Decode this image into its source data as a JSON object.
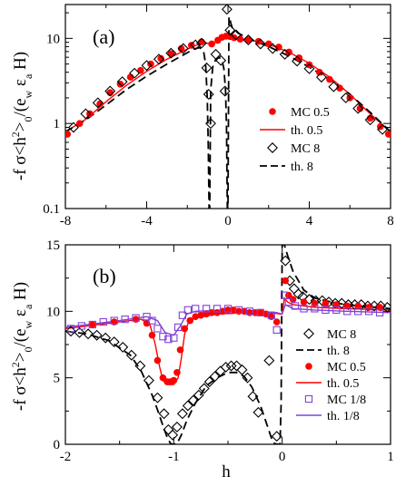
{
  "figure": {
    "xlabel": "h",
    "ylabel_a": "-f σ<h²>₀/(e_w ε_a H)",
    "ylabel_b": "-f σ<h²>₀/(e_w ε_a H)"
  },
  "chart_data": [
    {
      "type": "scatter",
      "panel_label": "(a)",
      "xlim": [
        -8,
        8
      ],
      "ylim": [
        0.1,
        25
      ],
      "yscale": "log",
      "xticks": [
        -8,
        -4,
        0,
        4,
        8
      ],
      "yticks": [
        0.1,
        1,
        10
      ],
      "xtick_labels": [
        "-8",
        "-4",
        "0",
        "4",
        "8"
      ],
      "ytick_labels": [
        "0.1",
        "1",
        "10"
      ],
      "legend_position": "right",
      "series": [
        {
          "name": "MC 0.5",
          "kind": "dots",
          "color": "#ff0000",
          "x": [
            -7.9,
            -7.3,
            -6.8,
            -6.3,
            -5.8,
            -5.3,
            -4.8,
            -4.3,
            -3.8,
            -3.3,
            -2.8,
            -2.3,
            -1.8,
            -1.3,
            -0.8,
            -0.5,
            -0.3,
            -0.1,
            0.1,
            0.3,
            0.6,
            1.0,
            1.5,
            2.0,
            2.5,
            3.0,
            3.5,
            4.0,
            4.5,
            5.0,
            5.5,
            6.0,
            6.5,
            7.0,
            7.5,
            7.9
          ],
          "y": [
            0.75,
            1.0,
            1.3,
            1.7,
            2.3,
            2.9,
            3.5,
            4.2,
            5.0,
            5.8,
            6.6,
            7.6,
            8.3,
            9.1,
            8.6,
            9.5,
            10.3,
            10.6,
            10.5,
            10.2,
            9.8,
            9.6,
            9.2,
            8.6,
            7.9,
            6.9,
            5.9,
            4.9,
            4.0,
            3.3,
            2.6,
            2.0,
            1.5,
            1.15,
            0.92,
            0.75
          ]
        },
        {
          "name": "th. 0.5",
          "kind": "line",
          "color": "#ff0000",
          "x": [
            -8,
            -7,
            -6,
            -5,
            -4,
            -3,
            -2,
            -1.5,
            -1.1,
            -0.8,
            -0.5,
            -0.2,
            0,
            0.3,
            0.6,
            1,
            1.5,
            2,
            3,
            4,
            5,
            6,
            7,
            8
          ],
          "y": [
            0.8,
            1.12,
            1.8,
            2.8,
            4.1,
            5.7,
            7.5,
            8.4,
            8.8,
            8.6,
            9.2,
            10.0,
            10.3,
            10.2,
            9.9,
            9.6,
            9.1,
            8.5,
            6.9,
            5.1,
            3.5,
            2.2,
            1.3,
            0.8
          ]
        },
        {
          "name": "MC 8",
          "kind": "diamonds",
          "color": "#000000",
          "x": [
            -7.6,
            -7.0,
            -6.4,
            -5.8,
            -5.2,
            -4.6,
            -4.0,
            -3.4,
            -2.8,
            -2.2,
            -1.6,
            -1.3,
            -1.05,
            -0.95,
            -0.85,
            -0.6,
            -0.35,
            -0.15,
            -0.05,
            0.1,
            0.4,
            1.0,
            1.6,
            2.2,
            2.8,
            3.4,
            4.0,
            4.6,
            5.2,
            5.8,
            6.4,
            7.0,
            7.6
          ],
          "y": [
            0.9,
            1.3,
            1.75,
            2.4,
            3.1,
            3.9,
            4.8,
            5.7,
            6.7,
            7.6,
            8.4,
            8.8,
            4.5,
            2.2,
            1.0,
            6.5,
            5.5,
            2.4,
            22,
            12.5,
            11,
            9.6,
            8.6,
            7.6,
            6.5,
            5.4,
            4.4,
            3.5,
            2.7,
            2.0,
            1.5,
            1.1,
            0.85
          ]
        },
        {
          "name": "th. 8",
          "kind": "dashed",
          "color": "#000000",
          "x": [
            -8,
            -7,
            -6,
            -5,
            -4,
            -3,
            -2,
            -1.7,
            -1.4,
            -1.2,
            -1.1,
            -1.02,
            -0.97,
            -0.93,
            -0.9,
            -0.85,
            -0.75,
            -0.6,
            -0.45,
            -0.3,
            -0.2,
            -0.12,
            -0.07,
            -0.03,
            0,
            0.05,
            0.2,
            0.5,
            1,
            2,
            3,
            4,
            5,
            6,
            7,
            8
          ],
          "y": [
            0.8,
            1.1,
            1.65,
            2.5,
            3.6,
            5.0,
            6.8,
            7.5,
            7.8,
            7.0,
            5.0,
            2.0,
            0.55,
            0.1,
            0.1,
            2.5,
            4.6,
            5.7,
            6.0,
            5.6,
            4.4,
            2.5,
            0.9,
            0.1,
            0.1,
            18,
            13.5,
            11.5,
            10.0,
            8.0,
            6.2,
            4.6,
            3.3,
            2.2,
            1.35,
            0.8
          ]
        }
      ]
    },
    {
      "type": "scatter",
      "panel_label": "(b)",
      "xlim": [
        -2,
        1
      ],
      "ylim": [
        0,
        15
      ],
      "yscale": "linear",
      "xticks": [
        -2,
        -1,
        0,
        1
      ],
      "yticks": [
        0,
        5,
        10,
        15
      ],
      "xtick_labels": [
        "-2",
        "-1",
        "0",
        "1"
      ],
      "ytick_labels": [
        "0",
        "5",
        "10",
        "15"
      ],
      "legend_position": "right",
      "series": [
        {
          "name": "MC 8",
          "kind": "diamonds",
          "color": "#000000",
          "x": [
            -1.95,
            -1.87,
            -1.79,
            -1.71,
            -1.63,
            -1.55,
            -1.47,
            -1.39,
            -1.31,
            -1.23,
            -1.15,
            -1.09,
            -1.05,
            -1.01,
            -0.97,
            -0.92,
            -0.87,
            -0.82,
            -0.77,
            -0.72,
            -0.67,
            -0.62,
            -0.57,
            -0.52,
            -0.47,
            -0.42,
            -0.37,
            -0.32,
            -0.27,
            -0.22,
            -0.12,
            -0.05,
            0.03,
            0.07,
            0.11,
            0.15,
            0.19,
            0.25,
            0.31,
            0.37,
            0.43,
            0.49,
            0.55,
            0.61,
            0.67,
            0.73,
            0.79,
            0.85,
            0.91,
            0.97
          ],
          "y": [
            8.5,
            8.4,
            8.3,
            8.2,
            8.0,
            7.7,
            7.3,
            6.7,
            5.9,
            4.8,
            3.5,
            2.3,
            1.1,
            0.7,
            1.3,
            2.3,
            2.9,
            3.3,
            3.7,
            4.2,
            4.7,
            5.1,
            5.5,
            5.8,
            5.9,
            5.9,
            5.6,
            5.0,
            3.6,
            2.4,
            6.3,
            0.6,
            13.8,
            12.3,
            11.7,
            11.3,
            11.1,
            10.9,
            10.8,
            10.8,
            10.7,
            10.6,
            10.6,
            10.5,
            10.5,
            10.5,
            10.4,
            10.4,
            10.4,
            10.3
          ]
        },
        {
          "name": "th. 8",
          "kind": "dashed",
          "color": "#000000",
          "x": [
            -2,
            -1.8,
            -1.6,
            -1.4,
            -1.3,
            -1.2,
            -1.15,
            -1.1,
            -1.06,
            -1.03,
            -1.0,
            -0.97,
            -0.93,
            -0.88,
            -0.8,
            -0.7,
            -0.6,
            -0.5,
            -0.42,
            -0.35,
            -0.28,
            -0.2,
            -0.15,
            -0.1,
            -0.07,
            -0.04,
            -0.02,
            -0.01,
            0,
            0.01,
            0.02,
            0.05,
            0.1,
            0.2,
            0.3,
            0.5,
            0.7,
            1.0
          ],
          "y": [
            8.5,
            8.3,
            7.8,
            6.7,
            5.5,
            3.7,
            2.6,
            1.4,
            0.5,
            0.05,
            0.0,
            0.05,
            0.7,
            1.8,
            3.1,
            4.4,
            5.0,
            5.4,
            5.4,
            5.1,
            4.3,
            2.9,
            1.7,
            0.5,
            0.05,
            0.0,
            0.0,
            3.0,
            15,
            15,
            15,
            14.2,
            13.0,
            11.6,
            11.0,
            10.6,
            10.4,
            10.2
          ]
        },
        {
          "name": "MC 0.5",
          "kind": "dots",
          "color": "#ff0000",
          "x": [
            -1.75,
            -1.55,
            -1.35,
            -1.25,
            -1.2,
            -1.15,
            -1.1,
            -1.06,
            -1.03,
            -1.0,
            -0.97,
            -0.94,
            -0.9,
            -0.85,
            -0.8,
            -0.75,
            -0.7,
            -0.65,
            -0.6,
            -0.55,
            -0.5,
            -0.45,
            -0.4,
            -0.35,
            -0.3,
            -0.25,
            -0.2,
            -0.15,
            -0.1,
            -0.05,
            0.03,
            0.06,
            0.1,
            0.2,
            0.3,
            0.4,
            0.5,
            0.6,
            0.7,
            0.8,
            0.9
          ],
          "y": [
            9.0,
            9.2,
            9.4,
            9.1,
            8.2,
            6.3,
            5.0,
            4.7,
            4.7,
            4.8,
            5.4,
            7.1,
            8.7,
            9.3,
            9.6,
            9.7,
            9.8,
            9.9,
            9.9,
            10.0,
            10.1,
            10.1,
            10.0,
            10.0,
            9.9,
            9.9,
            9.9,
            9.8,
            9.6,
            9.2,
            12.3,
            11.2,
            10.9,
            10.7,
            10.6,
            10.6,
            10.5,
            10.4,
            10.4,
            10.3,
            10.3
          ]
        },
        {
          "name": "th. 0.5",
          "kind": "line",
          "color": "#ff0000",
          "x": [
            -2,
            -1.6,
            -1.3,
            -1.22,
            -1.17,
            -1.13,
            -1.1,
            -1.06,
            -1.0,
            -0.96,
            -0.93,
            -0.9,
            -0.86,
            -0.8,
            -0.6,
            -0.3,
            -0.1,
            -0.02,
            0,
            0.02,
            0.05,
            0.1,
            0.3,
            0.6,
            1.0
          ],
          "y": [
            8.7,
            9.1,
            9.4,
            9.0,
            7.5,
            5.8,
            4.8,
            4.5,
            4.5,
            5.0,
            6.5,
            8.3,
            9.3,
            9.5,
            9.8,
            9.9,
            9.9,
            9.8,
            9.8,
            11.0,
            10.7,
            10.5,
            10.3,
            10.2,
            10.1
          ]
        },
        {
          "name": "MC 1/8",
          "kind": "squares",
          "color": "#8040d8",
          "x": [
            -1.95,
            -1.85,
            -1.75,
            -1.65,
            -1.55,
            -1.45,
            -1.35,
            -1.25,
            -1.2,
            -1.15,
            -1.1,
            -1.05,
            -1.0,
            -0.96,
            -0.92,
            -0.87,
            -0.8,
            -0.7,
            -0.6,
            -0.5,
            -0.4,
            -0.3,
            -0.2,
            -0.1,
            -0.05,
            0.02,
            0.06,
            0.12,
            0.2,
            0.3,
            0.4,
            0.5,
            0.6,
            0.7,
            0.8,
            0.9
          ],
          "y": [
            8.7,
            8.9,
            9.0,
            9.2,
            9.3,
            9.4,
            9.5,
            9.6,
            9.3,
            8.7,
            8.1,
            7.9,
            8.0,
            8.8,
            9.7,
            10.1,
            10.2,
            10.2,
            10.2,
            10.2,
            10.1,
            10.0,
            9.9,
            9.7,
            8.6,
            11.2,
            10.7,
            10.4,
            10.2,
            10.2,
            10.1,
            10.1,
            10.0,
            10.0,
            10.0,
            9.9
          ]
        },
        {
          "name": "th. 1/8",
          "kind": "line",
          "color": "#8040d8",
          "x": [
            -2,
            -1.5,
            -1.25,
            -1.15,
            -1.08,
            -1.0,
            -0.94,
            -0.88,
            -0.8,
            -0.5,
            -0.2,
            -0.05,
            0,
            0.03,
            0.1,
            0.3,
            0.6,
            1.0
          ],
          "y": [
            8.8,
            9.3,
            9.6,
            9.3,
            8.4,
            8.2,
            8.9,
            9.8,
            10.0,
            10.1,
            10.0,
            9.9,
            9.8,
            10.5,
            10.2,
            10.1,
            10.0,
            9.9
          ]
        }
      ]
    }
  ]
}
